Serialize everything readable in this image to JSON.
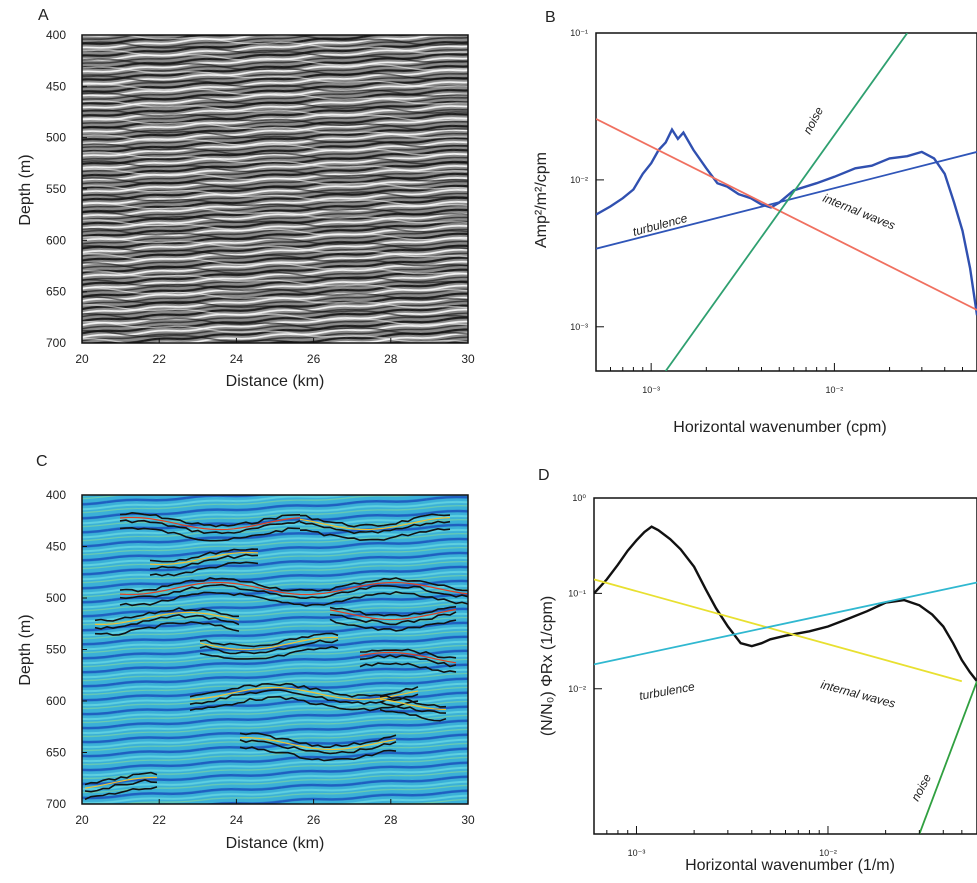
{
  "chart_data": [
    {
      "panel": "A",
      "type": "heatmap",
      "xlabel": "Distance (km)",
      "ylabel": "Depth (m)",
      "xlim": [
        20,
        30
      ],
      "ylim": [
        700,
        400
      ],
      "xticks": [
        20,
        22,
        24,
        26,
        28,
        30
      ],
      "yticks": [
        400,
        450,
        500,
        550,
        600,
        650,
        700
      ],
      "colormap": "grayscale"
    },
    {
      "panel": "B",
      "type": "line",
      "xlabel": "Horizontal wavenumber (cpm)",
      "ylabel": "Amp²/m²/cpm",
      "xscale": "log",
      "yscale": "log",
      "xlim": [
        0.0005,
        0.06
      ],
      "ylim": [
        0.0005,
        0.1
      ],
      "xticks": [
        "10⁻³",
        "10⁻²"
      ],
      "yticks": [
        "10⁻³",
        "10⁻²",
        "10⁻¹"
      ],
      "annotations": [
        "noise",
        "turbulence",
        "internal waves"
      ],
      "series": [
        {
          "color": "#3050b0",
          "x": [
            0.0005,
            0.0006,
            0.0007,
            0.0008,
            0.0009,
            0.001,
            0.0011,
            0.0012,
            0.0013,
            0.0014,
            0.0015,
            0.0017,
            0.002,
            0.0023,
            0.0026,
            0.003,
            0.0035,
            0.004,
            0.0045,
            0.005,
            0.006,
            0.008,
            0.01,
            0.013,
            0.016,
            0.02,
            0.025,
            0.03,
            0.035,
            0.04,
            0.045,
            0.05,
            0.055,
            0.06
          ],
          "values": [
            0.0058,
            0.0066,
            0.0075,
            0.0086,
            0.011,
            0.013,
            0.016,
            0.018,
            0.022,
            0.019,
            0.021,
            0.016,
            0.012,
            0.0095,
            0.009,
            0.008,
            0.0075,
            0.0068,
            0.0065,
            0.007,
            0.0085,
            0.0095,
            0.0105,
            0.012,
            0.0125,
            0.014,
            0.0145,
            0.0155,
            0.014,
            0.011,
            0.007,
            0.0045,
            0.0025,
            0.0012
          ]
        },
        {
          "color": "#2f55b8",
          "x": [
            0.0005,
            0.06
          ],
          "values": [
            0.0034,
            0.0155
          ]
        },
        {
          "color": "#f07060",
          "x": [
            0.0005,
            0.06
          ],
          "values": [
            0.026,
            0.0013
          ]
        },
        {
          "color": "#2fa070",
          "x": [
            0.0012,
            0.025
          ],
          "values": [
            0.0005,
            0.1
          ]
        }
      ]
    },
    {
      "panel": "C",
      "type": "heatmap",
      "xlabel": "Distance (km)",
      "ylabel": "Depth (m)",
      "xlim": [
        20,
        30
      ],
      "ylim": [
        700,
        400
      ],
      "xticks": [
        20,
        22,
        24,
        26,
        28,
        30
      ],
      "yticks": [
        400,
        450,
        500,
        550,
        600,
        650,
        700
      ],
      "colormap": "jet"
    },
    {
      "panel": "D",
      "type": "line",
      "xlabel": "Horizontal wavenumber (1/m)",
      "ylabel": "(N/N₀) ΦRx  (1/cpm)",
      "xscale": "log",
      "yscale": "log",
      "xlim": [
        0.0006,
        0.06
      ],
      "ylim": [
        0.0003,
        1
      ],
      "xticks": [
        "10⁻³",
        "10⁻²"
      ],
      "yticks": [
        "10⁻²",
        "10⁻¹",
        "10⁰"
      ],
      "annotations": [
        "turbulence",
        "internal waves",
        "noise"
      ],
      "series": [
        {
          "color": "#111111",
          "x": [
            0.0006,
            0.0007,
            0.0008,
            0.0009,
            0.001,
            0.0011,
            0.0012,
            0.0013,
            0.0015,
            0.0017,
            0.002,
            0.0023,
            0.0026,
            0.003,
            0.0035,
            0.004,
            0.0045,
            0.005,
            0.006,
            0.008,
            0.01,
            0.013,
            0.016,
            0.02,
            0.025,
            0.03,
            0.035,
            0.04,
            0.045,
            0.05,
            0.055,
            0.06
          ],
          "values": [
            0.1,
            0.14,
            0.2,
            0.28,
            0.36,
            0.44,
            0.5,
            0.46,
            0.37,
            0.29,
            0.19,
            0.11,
            0.07,
            0.045,
            0.03,
            0.028,
            0.03,
            0.033,
            0.036,
            0.04,
            0.045,
            0.055,
            0.065,
            0.08,
            0.085,
            0.075,
            0.06,
            0.045,
            0.03,
            0.02,
            0.015,
            0.012
          ]
        },
        {
          "color": "#e8e030",
          "x": [
            0.0006,
            0.05
          ],
          "values": [
            0.14,
            0.012
          ]
        },
        {
          "color": "#30b8d0",
          "x": [
            0.0006,
            0.06
          ],
          "values": [
            0.018,
            0.13
          ]
        },
        {
          "color": "#30a040",
          "x": [
            0.03,
            0.06
          ],
          "values": [
            0.0003,
            0.012
          ]
        }
      ]
    }
  ],
  "panels": {
    "A": {
      "label": "A",
      "xlabel": "Distance (km)",
      "ylabel": "Depth (m)"
    },
    "B": {
      "label": "B",
      "xlabel": "Horizontal wavenumber (cpm)",
      "ylabel": "Amp²/m²/cpm"
    },
    "C": {
      "label": "C",
      "xlabel": "Distance (km)",
      "ylabel": "Depth (m)"
    },
    "D": {
      "label": "D",
      "xlabel": "Horizontal wavenumber (1/m)",
      "ylabel": "(N/N₀) ΦRx  (1/cpm)"
    }
  },
  "colors": {
    "gray_dark": "#202020",
    "gray_light": "#e8e8e8",
    "jet_base": "#3ab0d8"
  }
}
